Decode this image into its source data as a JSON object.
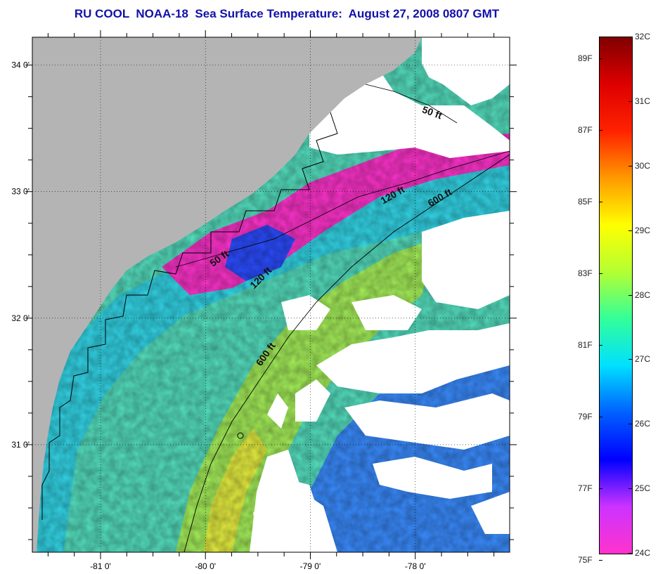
{
  "title": "RU COOL  NOAA-18  Sea Surface Temperature:  August 27, 2008 0807 GMT",
  "map": {
    "lat_ticks": [
      {
        "value": 34,
        "label": "34 0'"
      },
      {
        "value": 33,
        "label": "33 0'"
      },
      {
        "value": 32,
        "label": "32 0'"
      },
      {
        "value": 31,
        "label": "31 0'"
      }
    ],
    "lon_ticks": [
      {
        "value": -81,
        "label": "-81 0'"
      },
      {
        "value": -80,
        "label": "-80 0'"
      },
      {
        "value": -79,
        "label": "-79 0'"
      },
      {
        "value": -78,
        "label": "-78 0'"
      }
    ],
    "lat_range": [
      30.15,
      34.22
    ],
    "lon_range": [
      -81.65,
      -77.1
    ],
    "contour_labels": [
      {
        "text": "50 ft",
        "lon": -77.85,
        "lat": 33.6,
        "angle": 20
      },
      {
        "text": "120 ft",
        "lon": -78.2,
        "lat": 32.95,
        "angle": -30
      },
      {
        "text": "600 ft",
        "lon": -77.75,
        "lat": 32.93,
        "angle": -30
      },
      {
        "text": "50 ft",
        "lon": -79.85,
        "lat": 32.45,
        "angle": -35
      },
      {
        "text": "120 ft",
        "lon": -79.45,
        "lat": 32.3,
        "angle": -45
      },
      {
        "text": "600 ft",
        "lon": -79.4,
        "lat": 31.7,
        "angle": -55
      }
    ],
    "colors": {
      "land": "#b4b4b4",
      "cloud": "#ffffff",
      "coast": "#000000"
    }
  },
  "colorbar": {
    "celsius": [
      "32C",
      "31C",
      "30C",
      "29C",
      "28C",
      "27C",
      "26C",
      "25C",
      "24C"
    ],
    "fahrenheit": [
      "89F",
      "87F",
      "85F",
      "83F",
      "81F",
      "79F",
      "77F",
      "75F"
    ],
    "stops": [
      "#ff33cc",
      "#cc33ff",
      "#0000ff",
      "#0060ff",
      "#00e0ff",
      "#33ff99",
      "#b3ff33",
      "#ffff00",
      "#ff9900",
      "#ff2200",
      "#dd0000",
      "#800000"
    ]
  }
}
